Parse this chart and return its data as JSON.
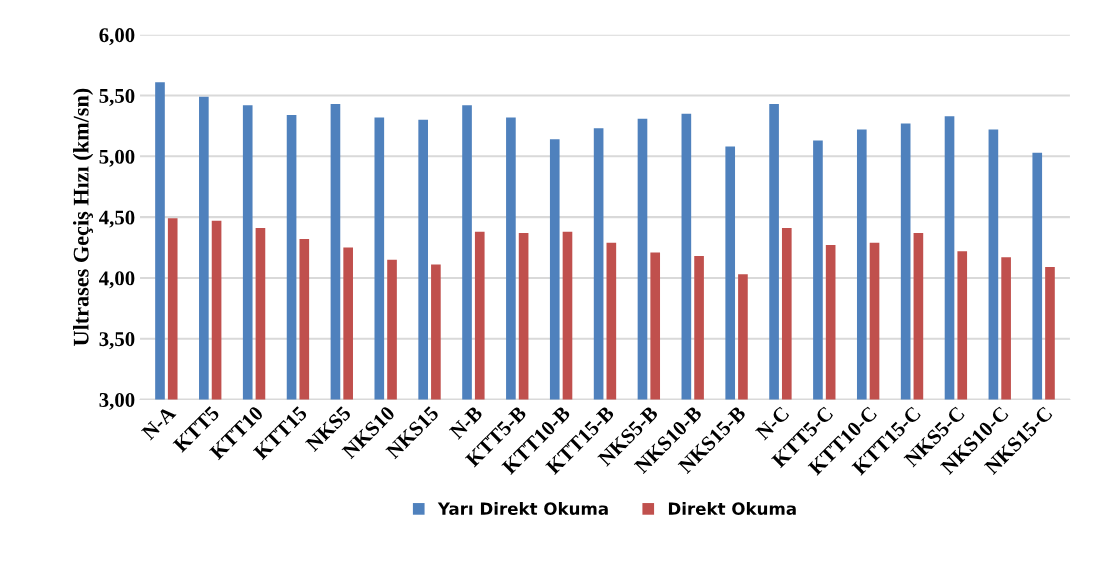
{
  "chart_data": {
    "type": "bar",
    "ylabel": "Ultrases Geçiş Hızı (km/sn)",
    "categories": [
      "N-A",
      "KTT5",
      "KTT10",
      "KTT15",
      "NKS5",
      "NKS10",
      "NKS15",
      "N-B",
      "KTT5-B",
      "KTT10-B",
      "KTT15-B",
      "NKS5-B",
      "NKS10-B",
      "NKS15-B",
      "N-C",
      "KTT5-C",
      "KTT10-C",
      "KTT15-C",
      "NKS5-C",
      "NKS10-C",
      "NKS15-C"
    ],
    "series": [
      {
        "name": "Yarı Direkt Okuma",
        "color": "#4f81bd",
        "values": [
          5.61,
          5.49,
          5.42,
          5.34,
          5.43,
          5.32,
          5.3,
          5.42,
          5.32,
          5.14,
          5.23,
          5.31,
          5.35,
          5.08,
          5.43,
          5.13,
          5.22,
          5.27,
          5.33,
          5.22,
          5.03
        ]
      },
      {
        "name": "Direkt Okuma",
        "color": "#c0504d",
        "values": [
          4.49,
          4.47,
          4.41,
          4.32,
          4.25,
          4.15,
          4.11,
          4.38,
          4.37,
          4.38,
          4.29,
          4.21,
          4.18,
          4.03,
          4.41,
          4.27,
          4.29,
          4.37,
          4.22,
          4.17,
          4.09
        ]
      }
    ],
    "ylim": [
      3,
      6
    ],
    "yticks": [
      {
        "value": 3,
        "label": "3,00"
      },
      {
        "value": 3.5,
        "label": "3,50"
      },
      {
        "value": 4,
        "label": "4,00"
      },
      {
        "value": 4.5,
        "label": "4,50"
      },
      {
        "value": 5,
        "label": "5,00"
      },
      {
        "value": 5.5,
        "label": "5,50"
      },
      {
        "value": 6,
        "label": "6,00"
      }
    ],
    "grid": "y",
    "legend": "bottom"
  }
}
